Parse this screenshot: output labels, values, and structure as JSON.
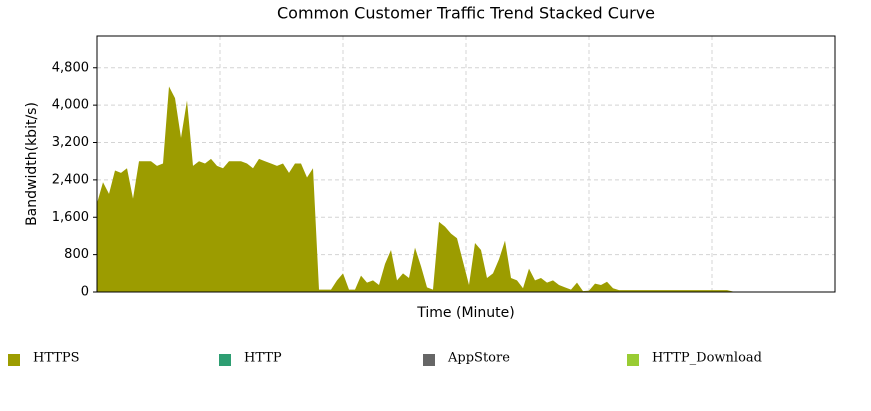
{
  "chart_data": {
    "type": "stacked-area",
    "title": "Common Customer Traffic Trend Stacked Curve",
    "x_label": "Time (Minute)",
    "y_label": "Bandwidth(kbit/s)",
    "categories": [
      null,
      null,
      null,
      null,
      null,
      null,
      null,
      null,
      null,
      null,
      null,
      null,
      null,
      null,
      null,
      null,
      null,
      null,
      null,
      null,
      null,
      null,
      null,
      null,
      null,
      null,
      null,
      null,
      null,
      null,
      null,
      null,
      null,
      null,
      null,
      null,
      null,
      null,
      null,
      null,
      null,
      null,
      null,
      null,
      null,
      null,
      null,
      null,
      null,
      null,
      null,
      null,
      null,
      null,
      null,
      null,
      null,
      null,
      null,
      null,
      null,
      null,
      null,
      null,
      null,
      null,
      null,
      null,
      null,
      null,
      null,
      null,
      null,
      null,
      null,
      null,
      null,
      null,
      null,
      null,
      null,
      null,
      null,
      null,
      null,
      null,
      null,
      null,
      null,
      null,
      null,
      null,
      null,
      null,
      null,
      null,
      null,
      null,
      null,
      null,
      null,
      null,
      null,
      null,
      null,
      null,
      null,
      null,
      null,
      null,
      null,
      null,
      null,
      null,
      null,
      null,
      null,
      null,
      null,
      null,
      null,
      null,
      null,
      null
    ],
    "series": [
      {
        "name": "HTTPS",
        "color": "#9c9c00",
        "values": [
          1900,
          2350,
          2100,
          2600,
          2550,
          2650,
          2000,
          2800,
          2800,
          2800,
          2700,
          2750,
          4400,
          4150,
          3300,
          4100,
          2700,
          2800,
          2750,
          2850,
          2700,
          2650,
          2800,
          2800,
          2800,
          2750,
          2650,
          2850,
          2800,
          2750,
          2700,
          2750,
          2550,
          2750,
          2750,
          2450,
          2650,
          50,
          50,
          50,
          250,
          400,
          50,
          50,
          350,
          200,
          250,
          150,
          600,
          900,
          250,
          400,
          300,
          950,
          550,
          100,
          50,
          1500,
          1400,
          1250,
          1150,
          650,
          150,
          1050,
          900,
          300,
          400,
          700,
          1100,
          300,
          250,
          80,
          500,
          250,
          300,
          200,
          250,
          150,
          100,
          50,
          200,
          20,
          30,
          180,
          150,
          220,
          80,
          40,
          40,
          40,
          40,
          40,
          40,
          40,
          40,
          40,
          40,
          40,
          40,
          40,
          40,
          40,
          40,
          40,
          40,
          40,
          10,
          10,
          10,
          10,
          10,
          10,
          10,
          10,
          10,
          10,
          10,
          10,
          10,
          10,
          10,
          10,
          10,
          10
        ]
      },
      {
        "name": "HTTP",
        "color": "#2e9e72",
        "values": [
          0,
          0,
          0,
          0,
          0,
          0,
          0,
          0,
          0,
          0,
          0,
          0,
          0,
          0,
          0,
          0,
          0,
          0,
          0,
          0,
          0,
          0,
          0,
          0,
          0,
          0,
          0,
          0,
          0,
          0,
          0,
          0,
          0,
          0,
          0,
          0,
          0,
          0,
          0,
          0,
          0,
          0,
          0,
          0,
          0,
          0,
          0,
          0,
          0,
          0,
          0,
          0,
          0,
          0,
          0,
          0,
          0,
          0,
          0,
          0,
          0,
          0,
          0,
          0,
          0,
          0,
          0,
          0,
          0,
          0,
          0,
          0,
          0,
          0,
          0,
          0,
          0,
          0,
          0,
          0,
          0,
          0,
          0,
          0,
          0,
          0,
          0,
          0,
          0,
          0,
          0,
          0,
          0,
          0,
          0,
          0,
          0,
          0,
          0,
          0,
          0,
          0,
          0,
          0,
          0,
          0,
          0,
          0,
          0,
          0,
          0,
          0,
          0,
          0,
          0,
          0,
          0,
          0,
          0,
          0,
          0,
          0,
          0,
          0
        ]
      },
      {
        "name": "AppStore",
        "color": "#666666",
        "values": [
          0,
          0,
          0,
          0,
          0,
          0,
          0,
          0,
          0,
          0,
          0,
          0,
          0,
          0,
          0,
          0,
          0,
          0,
          0,
          0,
          0,
          0,
          0,
          0,
          0,
          0,
          0,
          0,
          0,
          0,
          0,
          0,
          0,
          0,
          0,
          0,
          0,
          0,
          0,
          0,
          0,
          0,
          0,
          0,
          0,
          0,
          0,
          0,
          0,
          0,
          0,
          0,
          0,
          0,
          0,
          0,
          0,
          0,
          0,
          0,
          0,
          0,
          0,
          0,
          0,
          0,
          0,
          0,
          0,
          0,
          0,
          0,
          0,
          0,
          0,
          0,
          0,
          0,
          0,
          0,
          0,
          0,
          0,
          0,
          0,
          0,
          0,
          0,
          0,
          0,
          0,
          0,
          0,
          0,
          0,
          0,
          0,
          0,
          0,
          0,
          0,
          0,
          0,
          0,
          0,
          0,
          0,
          0,
          0,
          0,
          0,
          0,
          0,
          0,
          0,
          0,
          0,
          0,
          0,
          0,
          0,
          0,
          0,
          0
        ]
      },
      {
        "name": "HTTP_Download",
        "color": "#99cc33",
        "values": [
          0,
          0,
          0,
          0,
          0,
          0,
          0,
          0,
          0,
          0,
          0,
          0,
          0,
          0,
          0,
          0,
          0,
          0,
          0,
          0,
          0,
          0,
          0,
          0,
          0,
          0,
          0,
          0,
          0,
          0,
          0,
          0,
          0,
          0,
          0,
          0,
          0,
          0,
          0,
          0,
          0,
          0,
          0,
          0,
          0,
          0,
          0,
          0,
          0,
          0,
          0,
          0,
          0,
          0,
          0,
          0,
          0,
          0,
          0,
          0,
          0,
          0,
          0,
          0,
          0,
          0,
          0,
          0,
          0,
          0,
          0,
          0,
          0,
          0,
          0,
          0,
          0,
          0,
          0,
          0,
          0,
          0,
          0,
          0,
          0,
          0,
          0,
          0,
          0,
          0,
          0,
          0,
          0,
          0,
          0,
          0,
          0,
          0,
          0,
          0,
          0,
          0,
          0,
          0,
          0,
          0,
          0,
          0,
          0,
          0,
          0,
          0,
          0,
          0,
          0,
          0,
          0,
          0,
          0,
          0,
          0,
          0,
          0,
          0
        ]
      }
    ],
    "ylim": [
      0,
      5480
    ],
    "yticks": [
      0,
      800,
      {
        "value": 1600,
        "label": "1,600"
      },
      {
        "value": 2400,
        "label": "2,400"
      },
      {
        "value": 3200,
        "label": "3,200"
      },
      {
        "value": 4000,
        "label": "4,000"
      },
      {
        "value": 4800,
        "label": "4,800"
      }
    ],
    "grid": true
  }
}
